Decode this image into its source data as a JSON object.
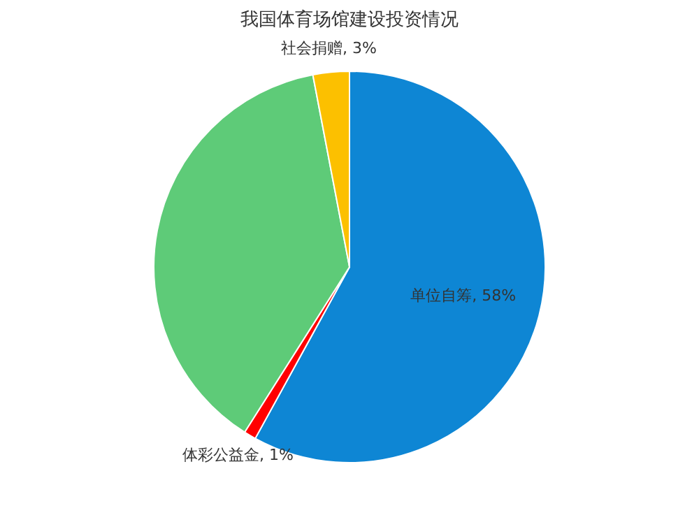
{
  "chart_data": {
    "type": "pie",
    "title": "我国体育场馆建设投资情况",
    "categories": [
      "单位自筹",
      "体彩公益金",
      null,
      "社会捐赠"
    ],
    "values": [
      58,
      1,
      38,
      3
    ],
    "value_labels": [
      "58%",
      "1%",
      null,
      "3%"
    ],
    "colors": [
      "#0e86d4",
      "#ff0000",
      "#5ecb78",
      "#fcc000"
    ],
    "legend": false
  }
}
